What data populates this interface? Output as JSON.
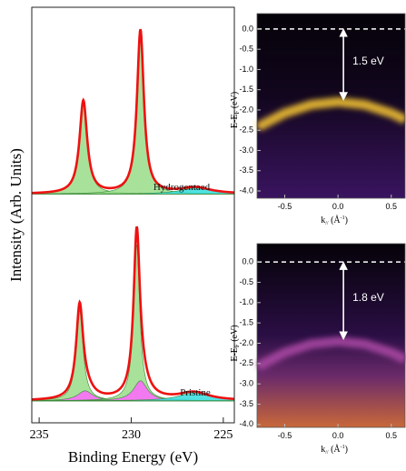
{
  "chart_data": [
    {
      "type": "spectra",
      "xlabel": "Binding Energy (eV)",
      "ylabel": "Intensity (Arb. Units)",
      "xlim": [
        235.4,
        224.4
      ],
      "xticks": [
        235,
        230,
        225
      ],
      "panels": [
        {
          "label": "Hydrogentaed",
          "ylim": [
            0,
            100
          ],
          "background": 12,
          "fit_color": "#ee1111",
          "peaks": [
            {
              "center": 232.6,
              "height": 46,
              "fwhm": 0.5,
              "color": "#99dd88"
            },
            {
              "center": 229.5,
              "height": 81,
              "fwhm": 0.45,
              "color": "#99dd88"
            },
            {
              "center": 226.5,
              "height": 3,
              "fwhm": 2,
              "color": "#33dddd"
            }
          ]
        },
        {
          "label": "Pristine",
          "ylim": [
            0,
            100
          ],
          "background": 11,
          "fit_color": "#ee1111",
          "peaks": [
            {
              "center": 232.8,
              "height": 45,
              "fwhm": 0.45,
              "color": "#99dd88"
            },
            {
              "center": 232.5,
              "height": 5,
              "fwhm": 1.0,
              "color": "#ff66ff"
            },
            {
              "center": 229.7,
              "height": 78,
              "fwhm": 0.4,
              "color": "#99dd88"
            },
            {
              "center": 229.5,
              "height": 10,
              "fwhm": 0.9,
              "color": "#ff66ff"
            },
            {
              "center": 226.6,
              "height": 4,
              "fwhm": 2,
              "color": "#33dddd"
            }
          ]
        }
      ]
    },
    {
      "type": "arpes",
      "ylabel": [
        "E-E",
        "F",
        " (eV)"
      ],
      "xlabel": [
        "k",
        "//",
        " (Å",
        "-1",
        ")"
      ],
      "xlim": [
        -0.76,
        0.63
      ],
      "ylim": [
        -4.18,
        0.38
      ],
      "yticks": [
        {
          "value": 0,
          "label": "0.0"
        },
        -0.5,
        {
          "value": -1,
          "label": "-1.0"
        },
        -1.5,
        {
          "value": -2,
          "label": "-2.0"
        },
        -2.5,
        {
          "value": -3,
          "label": "-3.0"
        },
        -3.5,
        {
          "value": -4,
          "label": "-4.0"
        }
      ],
      "xticks": [
        -0.5,
        {
          "value": 0,
          "label": "0.0"
        },
        0.5
      ],
      "fermi_level": 0,
      "annotation": "1.5 eV",
      "band_color": "#ffcc33",
      "band": {
        "k": [
          -0.75,
          -0.5,
          -0.25,
          0,
          0.25,
          0.5,
          0.63
        ],
        "E": [
          -2.42,
          -2.08,
          -1.87,
          -1.8,
          -1.87,
          -2.08,
          -2.24
        ]
      }
    },
    {
      "type": "arpes",
      "ylabel": [
        "E-E",
        "F",
        " (eV)"
      ],
      "xlabel": [
        "k",
        "//",
        " (Å",
        "-1",
        ")"
      ],
      "xlim": [
        -0.76,
        0.63
      ],
      "ylim": [
        -4.07,
        0.45
      ],
      "yticks": [
        {
          "value": 0,
          "label": "0.0"
        },
        -0.5,
        {
          "value": -1,
          "label": "-1.0"
        },
        -1.5,
        {
          "value": -2,
          "label": "-2.0"
        },
        -2.5,
        {
          "value": -3,
          "label": "-3.0"
        },
        -3.5,
        {
          "value": -4,
          "label": "-4.0"
        }
      ],
      "xticks": [
        -0.5,
        {
          "value": 0,
          "label": "0.0"
        },
        0.5
      ],
      "fermi_level": 0,
      "annotation": "1.8 eV",
      "band_color": "#b04aa8",
      "band": {
        "k": [
          -0.75,
          -0.5,
          -0.25,
          0,
          0.25,
          0.5,
          0.63
        ],
        "E": [
          -2.57,
          -2.23,
          -2.02,
          -1.95,
          -2.02,
          -2.23,
          -2.39
        ]
      }
    }
  ]
}
